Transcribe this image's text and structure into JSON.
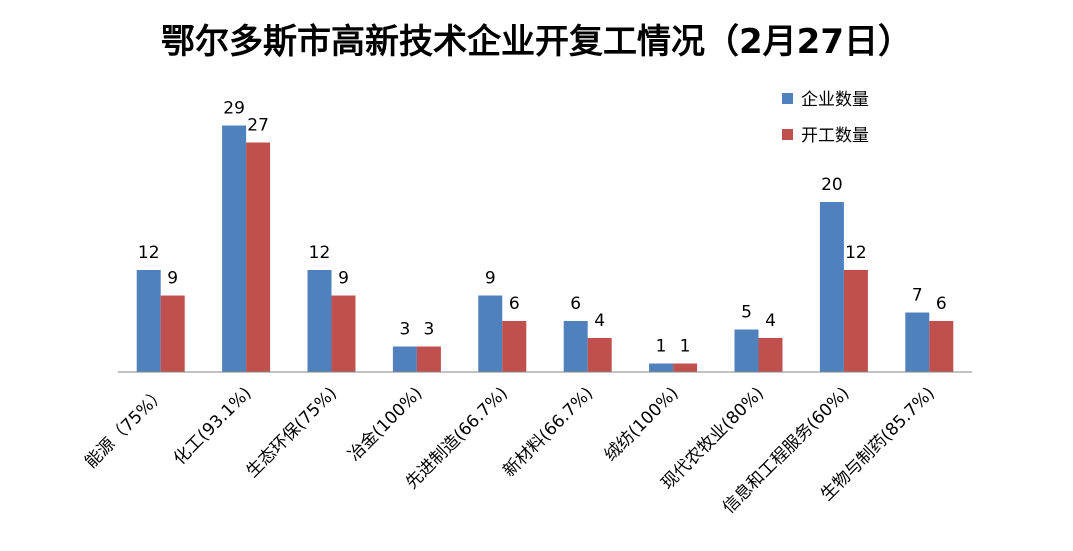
{
  "chart_data": {
    "type": "bar",
    "title": "鄂尔多斯市高新技术企业开复工情况（2月27日）",
    "categories": [
      "能源（75%）",
      "化工(93.1%)",
      "生态环保(75%)",
      "冶金(100%)",
      "先进制造(66.7%)",
      "新材料(66.7%)",
      "绒纺(100%)",
      "现代农牧业(80%)",
      "信息和工程服务(60%)",
      "生物与制药(85.7%)"
    ],
    "series": [
      {
        "name": "企业数量",
        "color": "#4f81bd",
        "values": [
          12,
          29,
          12,
          3,
          9,
          6,
          1,
          5,
          20,
          7
        ]
      },
      {
        "name": "开工数量",
        "color": "#c0504d",
        "values": [
          9,
          27,
          9,
          3,
          6,
          4,
          1,
          4,
          12,
          6
        ]
      }
    ],
    "ylim": [
      0,
      32
    ],
    "grid": false,
    "legend_position": "top-right",
    "data_labels": true
  }
}
